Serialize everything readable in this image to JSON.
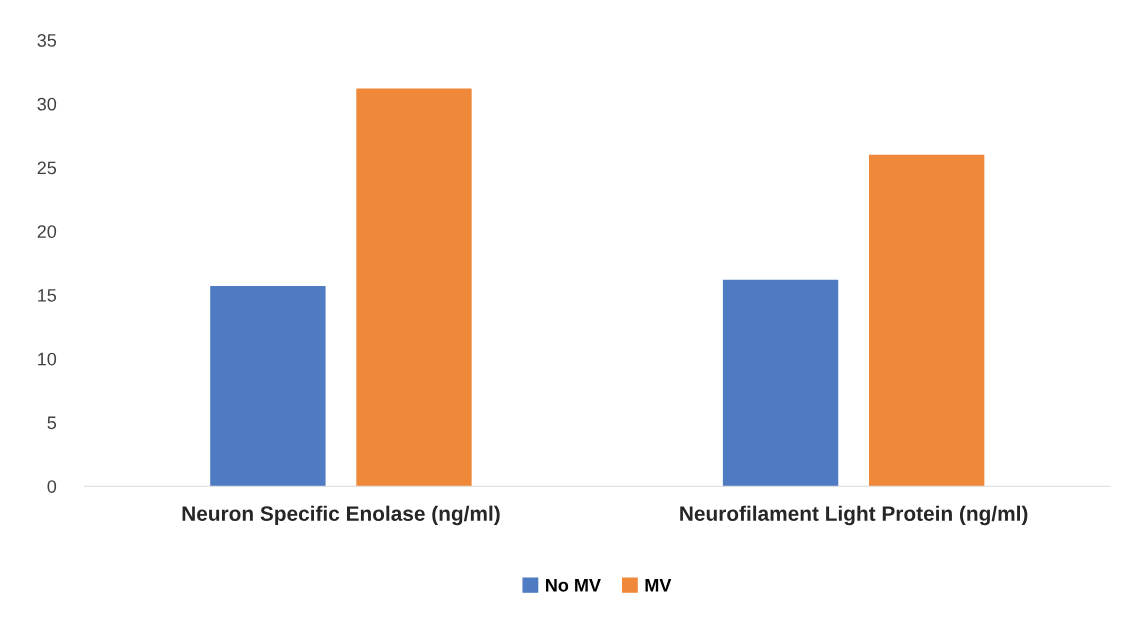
{
  "chart_data": {
    "type": "bar",
    "categories": [
      "Neuron Specific Enolase (ng/ml)",
      "Neurofilament Light Protein (ng/ml)"
    ],
    "series": [
      {
        "name": "No MV",
        "color": "#4f7bc2",
        "values": [
          15.7,
          16.2
        ]
      },
      {
        "name": "MV",
        "color": "#f0883a",
        "values": [
          31.2,
          26.0
        ]
      }
    ],
    "ylim": [
      0,
      35
    ],
    "yticks": [
      0,
      5,
      10,
      15,
      20,
      25,
      30,
      35
    ],
    "grid": false,
    "legend": "bottom"
  }
}
